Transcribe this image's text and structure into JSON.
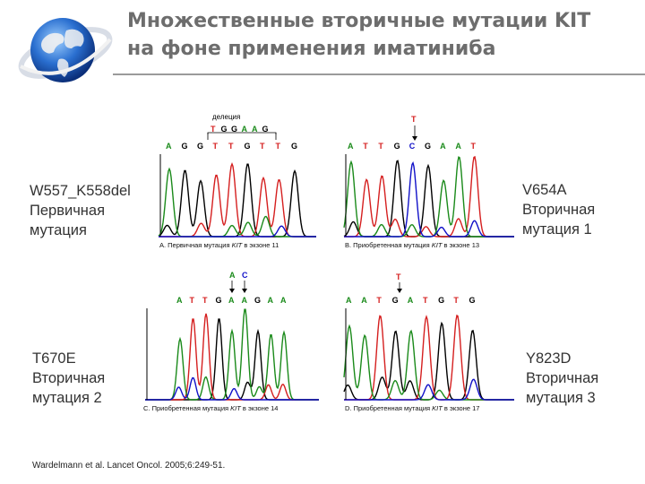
{
  "slide": {
    "title_line1": "Множественные вторичные мутации KIT",
    "title_line2": "на фоне применения иматиниба"
  },
  "colors": {
    "A": "#1a8a1a",
    "C": "#1010c8",
    "G": "#000000",
    "T": "#d51f1f",
    "title": "#6d6d6d"
  },
  "labels": {
    "left_top": {
      "line1": "W557_K558del",
      "line2": "Первичная",
      "line3": "мутация"
    },
    "right_top": {
      "line1": "V654A",
      "line2": "Вторичная",
      "line3": "мутация 1"
    },
    "left_bottom": {
      "line1": "T670E",
      "line2": "Вторичная",
      "line3": "мутация 2"
    },
    "right_bottom": {
      "line1": "Y823D",
      "line2": "Вторичная",
      "line3": "мутация 3"
    }
  },
  "panels": {
    "a": {
      "deletion_label": "делеция",
      "deleted_bases": [
        "T",
        "G",
        "G",
        "A",
        "A",
        "G"
      ],
      "sequence": [
        "A",
        "G",
        "G",
        "T",
        "T",
        "G",
        "T",
        "T",
        "G"
      ],
      "caption_prefix": "A. Первичная мутация ",
      "caption_gene": "KIT",
      "caption_suffix": " в экзоне 11"
    },
    "b": {
      "mutant_base": "T",
      "sequence": [
        "A",
        "T",
        "T",
        "G",
        "C",
        "G",
        "A",
        "A",
        "T"
      ],
      "caption_prefix": "B. Приобретенная мутация ",
      "caption_gene": "KIT",
      "caption_suffix": " в экзоне 13"
    },
    "c": {
      "mutant_bases": [
        "A",
        "C"
      ],
      "sequence": [
        "A",
        "T",
        "T",
        "G",
        "A",
        "A",
        "G",
        "A",
        "A"
      ],
      "caption_prefix": "C. Приобретенная мутация ",
      "caption_gene": "KIT",
      "caption_suffix": " в экзоне 14"
    },
    "d": {
      "mutant_base": "T",
      "sequence": [
        "A",
        "A",
        "T",
        "G",
        "A",
        "T",
        "G",
        "T",
        "G"
      ],
      "caption_prefix": "D. Приобретенная мутация ",
      "caption_gene": "KIT",
      "caption_suffix": " в экзоне 17"
    }
  },
  "reference": "Wardelmann et al. Lancet Oncol. 2005;6:249-51."
}
